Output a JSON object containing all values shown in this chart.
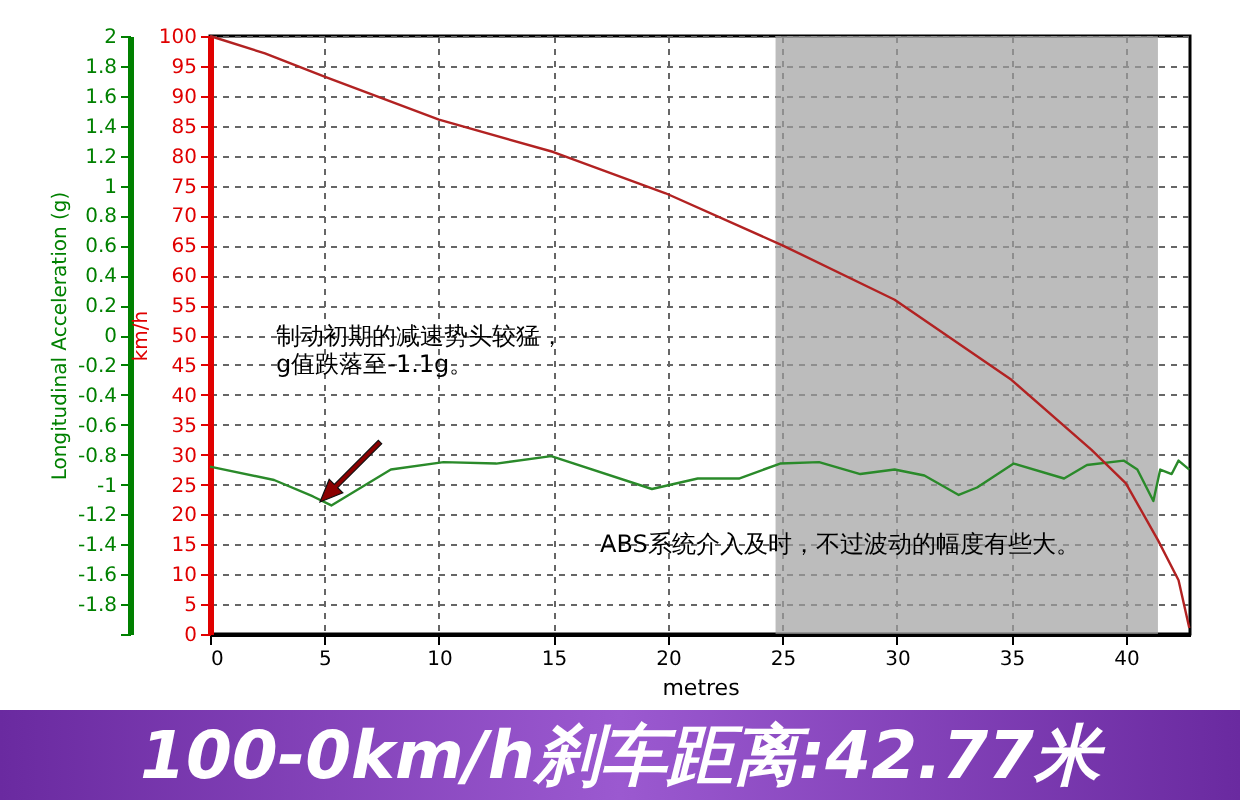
{
  "chart_data": {
    "type": "line",
    "title": "100-0km/h刹车距离:42.77米",
    "xlabel": "metres",
    "ylabel": "Longitudinal Acceleration (g)",
    "y2label": "km/h",
    "xlim": [
      0,
      42.8
    ],
    "xticks": [
      0,
      5,
      10,
      15,
      20,
      25,
      30,
      35,
      40
    ],
    "ylim": [
      -2,
      2
    ],
    "yticks": [
      {
        "value": -2,
        "label": null
      },
      -1.8,
      -1.6,
      -1.4,
      -1.2,
      -1,
      -0.8,
      -0.6,
      -0.4,
      -0.2,
      0,
      0.2,
      0.4,
      0.6,
      0.8,
      1,
      1.2,
      1.4,
      1.6,
      1.8,
      2
    ],
    "y2lim": [
      0,
      100
    ],
    "y2ticks": [
      0,
      5,
      10,
      15,
      20,
      25,
      30,
      35,
      40,
      45,
      50,
      55,
      60,
      65,
      70,
      75,
      80,
      85,
      90,
      95,
      100
    ],
    "grid": true,
    "legend": false,
    "series": [
      {
        "color": "#2a8a2a",
        "axis": "y",
        "x": [
          0,
          2.8,
          4.5,
          5.3,
          7.9,
          10.2,
          12.5,
          14.9,
          19.3,
          21.3,
          23.1,
          24.9,
          26.6,
          28.4,
          29.9,
          31.2,
          32.7,
          33.5,
          35.1,
          37.3,
          38.3,
          39.9,
          40.5,
          41.2,
          41.5,
          42,
          42.3,
          42.77
        ],
        "values": [
          -0.88,
          -0.97,
          -1.08,
          -1.14,
          -0.9,
          -0.85,
          -0.86,
          -0.81,
          -1.03,
          -0.96,
          -0.96,
          -0.86,
          -0.85,
          -0.93,
          -0.9,
          -0.94,
          -1.07,
          -1.02,
          -0.86,
          -0.96,
          -0.87,
          -0.84,
          -0.9,
          -1.11,
          -0.9,
          -0.93,
          -0.84,
          -0.9
        ]
      },
      {
        "color": "#b22222",
        "axis": "y2",
        "x": [
          0,
          2.4,
          5,
          10,
          15,
          19.9,
          25,
          29.9,
          35,
          38.5,
          40,
          41.4,
          42.3,
          42.77
        ],
        "values": [
          100,
          97.1,
          93.2,
          86,
          80.6,
          73.7,
          65,
          55.9,
          42.5,
          30.8,
          25.2,
          15.7,
          9,
          1
        ]
      }
    ],
    "bands": [
      {
        "axis": "x",
        "from": 24.7,
        "to": 41.4,
        "color": "#a0a0a0"
      }
    ],
    "annotations": [
      "制动初期的减速势头较猛，\ng值跌落至-1.1g。",
      "ABS系统介入及时，不过波动的幅度有些大。"
    ]
  }
}
